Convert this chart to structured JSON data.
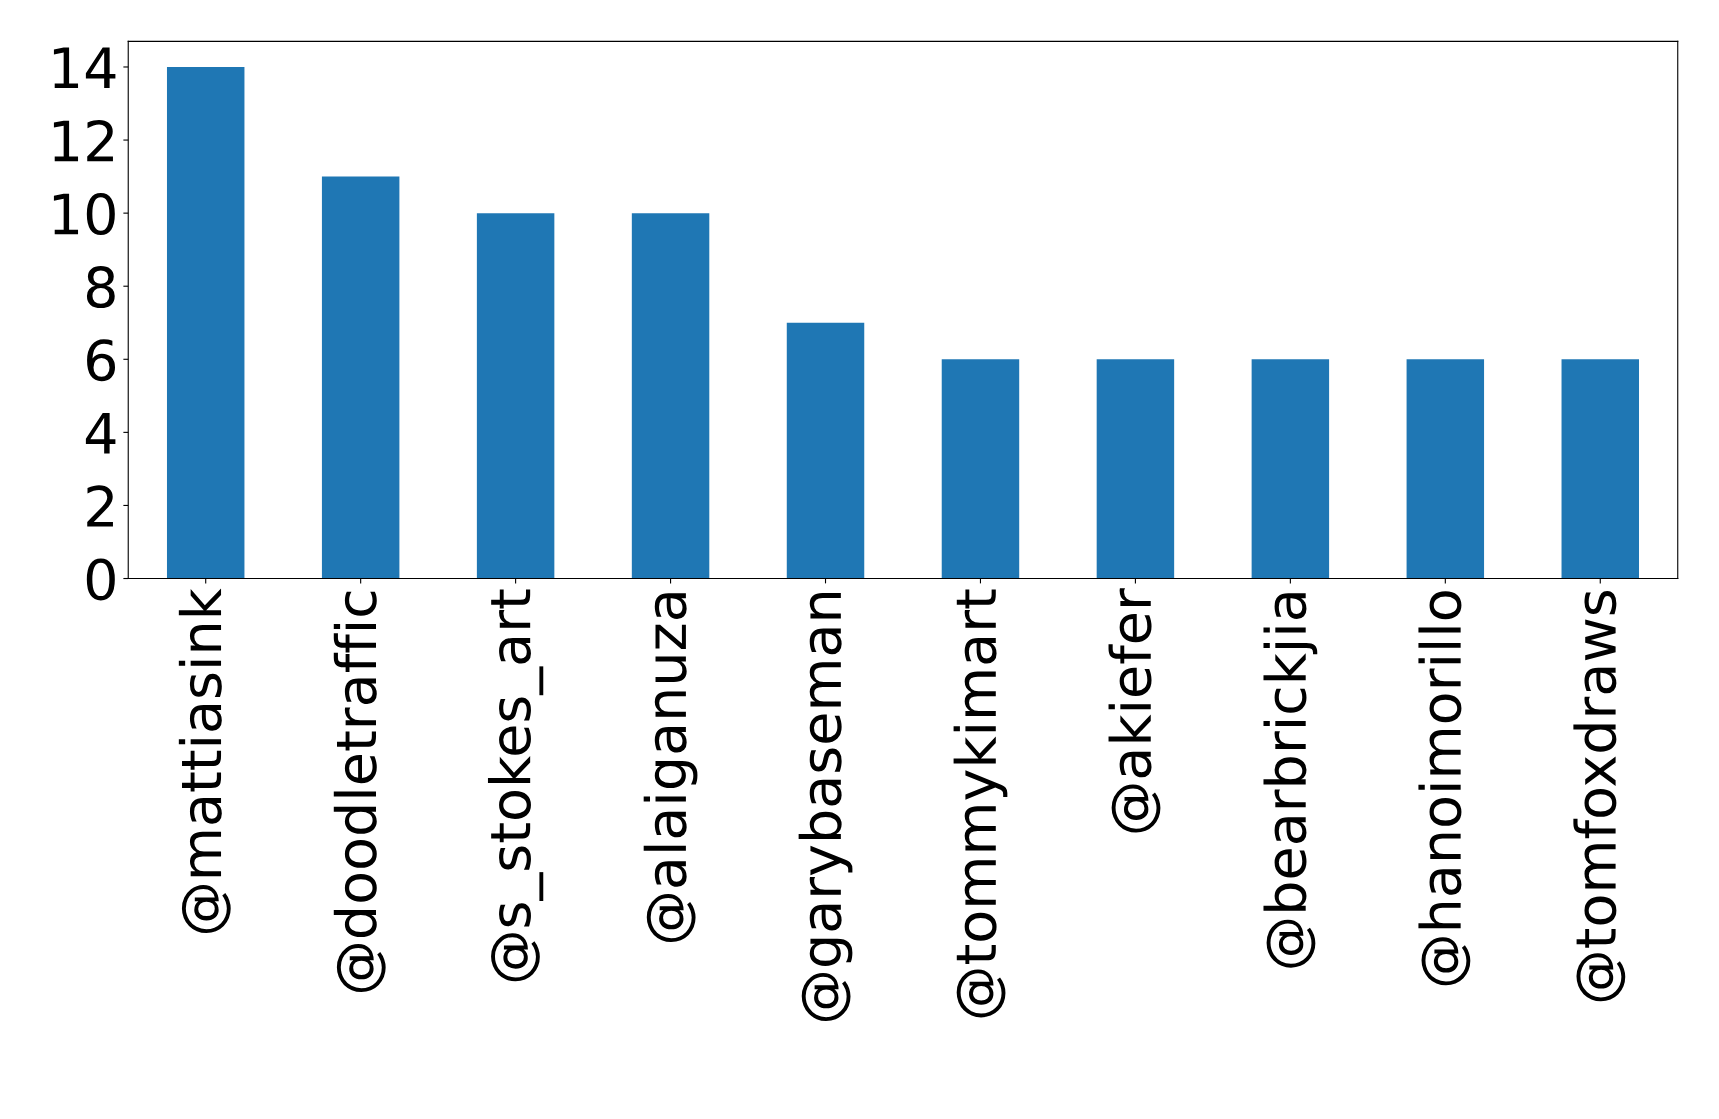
{
  "chart_data": {
    "type": "bar",
    "categories": [
      "@mattiasink",
      "@doodletraffic",
      "@s_stokes_art",
      "@alaiganuza",
      "@garybaseman",
      "@tommykimart",
      "@akiefer",
      "@bearbrickjia",
      "@hanoimorillo",
      "@tomfoxdraws"
    ],
    "values": [
      14,
      11,
      10,
      10,
      7,
      6,
      6,
      6,
      6,
      6
    ],
    "color": "#1f77b4",
    "ylim": [
      0,
      14.7
    ],
    "yticks": [
      0,
      2,
      4,
      6,
      8,
      10,
      12,
      14
    ],
    "grid": false,
    "legend": false
  }
}
